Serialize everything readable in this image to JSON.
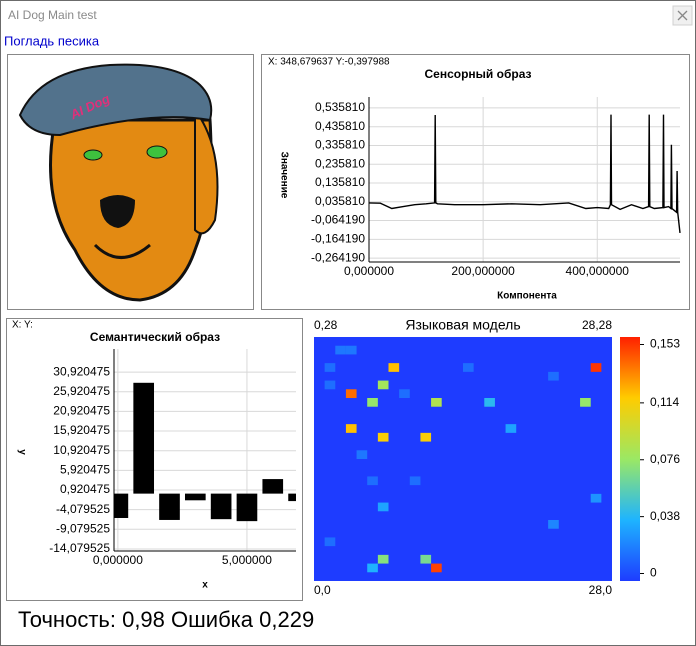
{
  "window": {
    "title": "AI Dog Main test",
    "link": "Погладь песика",
    "status": "Точность: 0,98 Ошибка 0,229"
  },
  "chart_data": [
    {
      "type": "line",
      "title": "Сенсорный образ",
      "cursor": "X: 348,679637  Y:-0,397988",
      "x_label": "Компонента",
      "y_label": "Значение",
      "x": [
        0,
        20,
        40,
        60,
        80,
        100,
        115,
        116,
        117,
        120,
        150,
        200,
        250,
        300,
        350,
        380,
        400,
        420,
        423,
        424,
        425,
        440,
        460,
        480,
        490,
        491,
        492,
        500,
        515,
        516,
        517,
        525,
        529,
        530,
        531,
        535,
        539,
        540,
        541,
        545
      ],
      "series": [
        {
          "color": "#000000",
          "values": [
            0.03,
            0.028,
            0.0,
            0.01,
            0.02,
            0.025,
            0.03,
            0.498,
            0.03,
            0.025,
            0.02,
            0.02,
            0.025,
            0.02,
            0.03,
            0.0,
            0.005,
            0.0,
            0.02,
            0.5,
            0.02,
            -0.005,
            0.02,
            0.0,
            0.01,
            0.5,
            0.01,
            0.0,
            0.005,
            0.5,
            0.005,
            0.01,
            0.0,
            0.34,
            0.0,
            -0.01,
            -0.02,
            0.2,
            -0.02,
            -0.13
          ]
        }
      ],
      "xlim": [
        0,
        545
      ],
      "ylim": [
        -0.285,
        0.594
      ],
      "xticks": [
        {
          "value": 0,
          "label": "0,000000"
        },
        {
          "value": 200,
          "label": "200,000000"
        },
        {
          "value": 400,
          "label": "400,000000"
        }
      ],
      "yticks": [
        {
          "value": 0.53581,
          "label": "0,535810"
        },
        {
          "value": 0.43581,
          "label": "0,435810"
        },
        {
          "value": 0.33581,
          "label": "0,335810"
        },
        {
          "value": 0.23581,
          "label": "0,235810"
        },
        {
          "value": 0.13581,
          "label": "0,135810"
        },
        {
          "value": 0.03581,
          "label": "0,035810"
        },
        {
          "value": -0.06419,
          "label": "-0,064190"
        },
        {
          "value": -0.16419,
          "label": "-0,164190"
        },
        {
          "value": -0.26419,
          "label": "-0,264190"
        }
      ],
      "grid": true
    },
    {
      "type": "bar",
      "title": "Семантический образ",
      "cursor": "X: Y:",
      "x_label": "x",
      "y_label": "y",
      "x": [
        0,
        1,
        2,
        3,
        4,
        5,
        6,
        7
      ],
      "values": [
        -6.2,
        28.2,
        -6.7,
        -1.7,
        -6.5,
        -7.0,
        3.7,
        -1.9
      ],
      "color": "#000000",
      "xlim": [
        -0.15,
        6.9
      ],
      "ylim": [
        -14.6,
        36.8
      ],
      "xticks": [
        {
          "value": 0,
          "label": "0,000000"
        },
        {
          "value": 5,
          "label": "5,000000"
        }
      ],
      "yticks": [
        {
          "value": 30.920475,
          "label": "30,920475"
        },
        {
          "value": 25.920475,
          "label": "25,920475"
        },
        {
          "value": 20.920475,
          "label": "20,920475"
        },
        {
          "value": 15.920475,
          "label": "15,920475"
        },
        {
          "value": 10.920475,
          "label": "10,920475"
        },
        {
          "value": 5.920475,
          "label": "5,920475"
        },
        {
          "value": 0.920475,
          "label": "0,920475"
        },
        {
          "value": -4.079525,
          "label": "-4,079525"
        },
        {
          "value": -9.079525,
          "label": "-9,079525"
        },
        {
          "value": -14.079525,
          "label": "-14,079525"
        }
      ],
      "grid": true
    },
    {
      "type": "heatmap",
      "title": "Языковая модель",
      "corner_labels": {
        "top_left": "0,28",
        "top_right": "28,28",
        "bottom_left": "0,0",
        "bottom_right": "28,0"
      },
      "xlim": [
        0,
        28
      ],
      "ylim": [
        0,
        28
      ],
      "x": [
        7,
        26,
        6,
        3,
        5,
        11,
        16,
        25,
        3,
        6,
        10,
        18,
        6,
        26,
        22,
        6,
        10,
        11,
        5,
        2,
        3,
        1,
        14,
        22,
        1,
        8,
        4,
        5,
        9,
        1
      ],
      "y": [
        24,
        24,
        22,
        21,
        20,
        20,
        20,
        20,
        17,
        16,
        16,
        17,
        8,
        9,
        6,
        2,
        2,
        1,
        1,
        26,
        26,
        24,
        24,
        23,
        22,
        21,
        14,
        11,
        11,
        4
      ],
      "values": [
        0.12,
        0.153,
        0.08,
        0.14,
        0.075,
        0.085,
        0.04,
        0.075,
        0.12,
        0.115,
        0.115,
        0.03,
        0.03,
        0.025,
        0.02,
        0.07,
        0.065,
        0.15,
        0.035,
        0.015,
        0.015,
        0.012,
        0.012,
        0.012,
        0.012,
        0.012,
        0.015,
        0.012,
        0.012,
        0.012
      ],
      "clim": [
        -0.005,
        0.158
      ],
      "cticks": [
        {
          "value": 0.153,
          "label": "0,153"
        },
        {
          "value": 0.114,
          "label": "0,114"
        },
        {
          "value": 0.076,
          "label": "0,076"
        },
        {
          "value": 0.038,
          "label": "0,038"
        },
        0
      ]
    }
  ]
}
